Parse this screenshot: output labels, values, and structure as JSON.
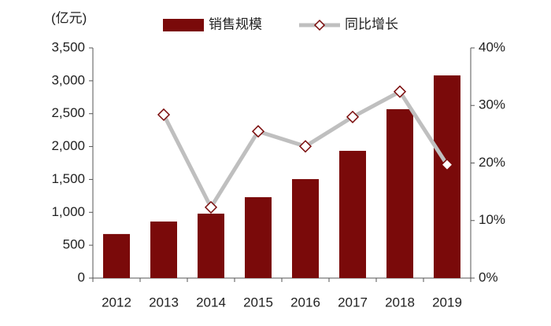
{
  "chart_data": {
    "type": "bar-line",
    "y_label": "(亿元)",
    "categories": [
      "2012",
      "2013",
      "2014",
      "2015",
      "2016",
      "2017",
      "2018",
      "2019"
    ],
    "series": [
      {
        "name": "销售规模",
        "type": "bar",
        "color": "#7a0a0a",
        "values": [
          670,
          860,
          980,
          1230,
          1505,
          1935,
          2568,
          3082
        ]
      },
      {
        "name": "同比增长",
        "type": "line",
        "axis": "y2",
        "color": "#bfbfbf",
        "marker_color": "#7a0a0a",
        "values": [
          null,
          28.4,
          12.3,
          25.5,
          22.9,
          28.0,
          32.4,
          19.7
        ]
      }
    ],
    "ylim": [
      0,
      3500
    ],
    "yticks": [
      0,
      500,
      {
        "value": 1000,
        "label": "1,000"
      },
      {
        "value": 1500,
        "label": "1,500"
      },
      {
        "value": 2000,
        "label": "2,000"
      },
      {
        "value": 2500,
        "label": "2,500"
      },
      {
        "value": 3000,
        "label": "3,000"
      },
      {
        "value": 3500,
        "label": "3,500"
      }
    ],
    "y2lim": [
      0,
      40
    ],
    "y2ticks": [
      {
        "value": 0,
        "label": "0%"
      },
      {
        "value": 10,
        "label": "10%"
      },
      {
        "value": 20,
        "label": "20%"
      },
      {
        "value": 30,
        "label": "30%"
      },
      {
        "value": 40,
        "label": "40%"
      }
    ],
    "legend": "top"
  }
}
